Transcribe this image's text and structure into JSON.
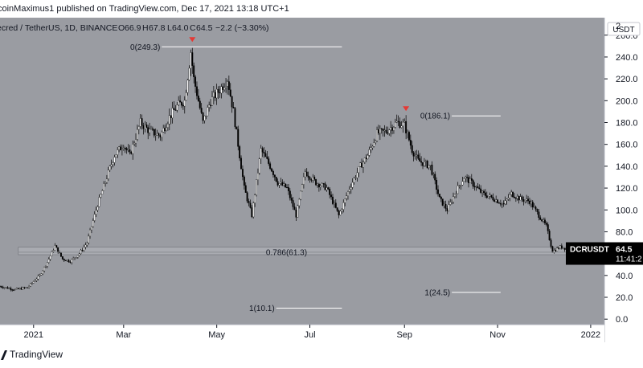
{
  "header": {
    "text": "coinMaximus1 published on TradingView.com, Dec 17, 2021 13:18 UTC+1"
  },
  "footer": {
    "brand": "TradingView",
    "logo_icon": "tradingview-logo-icon"
  },
  "colors": {
    "plot_background": "#9a9ca2",
    "candle_up": "#ffffff",
    "candle_down": "#000000",
    "fib_line": "#ffffff",
    "marker": "#e53935",
    "zone": "#a9abb1",
    "price_tag": "#000000"
  },
  "chart_data": {
    "type": "candlestick",
    "symbol_line": {
      "symbol": "ecred / TetherUS, 1D, BINANCE",
      "open_label": "O",
      "open": "66.9",
      "high_label": "H",
      "high": "67.8",
      "low_label": "L",
      "low": "64.0",
      "close_label": "C",
      "close": "64.5",
      "change": "−2.2 (−3.30%)"
    },
    "x_axis": {
      "ticks": [
        "2021",
        "Mar",
        "May",
        "Jul",
        "Sep",
        "Nov",
        "2022"
      ],
      "start": "2020-12-10",
      "end": "2022-01-10"
    },
    "y_axis": {
      "min": -5,
      "max": 276,
      "currency": "USDT",
      "top_partial_label": "2",
      "ticks": [
        0,
        20,
        40,
        60,
        80,
        100,
        120,
        140,
        160,
        180,
        200,
        220,
        240,
        260
      ],
      "tick_labels": [
        "0.0",
        "20.0",
        "40.0",
        "60.0",
        "80.0",
        "100.0",
        "120.0",
        "140.0",
        "160.0",
        "180.0",
        "200.0",
        "220.0",
        "240.0",
        "260.0"
      ]
    },
    "price_path": [
      [
        "2020-12-10",
        30
      ],
      [
        "2020-12-20",
        27
      ],
      [
        "2020-12-28",
        29
      ],
      [
        "2021-01-05",
        40
      ],
      [
        "2021-01-10",
        52
      ],
      [
        "2021-01-15",
        67
      ],
      [
        "2021-01-20",
        55
      ],
      [
        "2021-01-25",
        53
      ],
      [
        "2021-01-31",
        60
      ],
      [
        "2021-02-05",
        70
      ],
      [
        "2021-02-12",
        105
      ],
      [
        "2021-02-18",
        130
      ],
      [
        "2021-02-23",
        150
      ],
      [
        "2021-03-01",
        160
      ],
      [
        "2021-03-05",
        150
      ],
      [
        "2021-03-12",
        180
      ],
      [
        "2021-03-18",
        172
      ],
      [
        "2021-03-25",
        168
      ],
      [
        "2021-03-31",
        185
      ],
      [
        "2021-04-05",
        195
      ],
      [
        "2021-04-10",
        200
      ],
      [
        "2021-04-14",
        245
      ],
      [
        "2021-04-16",
        220
      ],
      [
        "2021-04-22",
        180
      ],
      [
        "2021-04-27",
        200
      ],
      [
        "2021-05-03",
        210
      ],
      [
        "2021-05-08",
        220
      ],
      [
        "2021-05-12",
        190
      ],
      [
        "2021-05-19",
        120
      ],
      [
        "2021-05-24",
        95
      ],
      [
        "2021-05-30",
        155
      ],
      [
        "2021-06-05",
        140
      ],
      [
        "2021-06-10",
        125
      ],
      [
        "2021-06-16",
        120
      ],
      [
        "2021-06-22",
        95
      ],
      [
        "2021-06-28",
        135
      ],
      [
        "2021-07-05",
        125
      ],
      [
        "2021-07-12",
        120
      ],
      [
        "2021-07-20",
        95
      ],
      [
        "2021-07-27",
        120
      ],
      [
        "2021-08-03",
        140
      ],
      [
        "2021-08-08",
        150
      ],
      [
        "2021-08-14",
        170
      ],
      [
        "2021-08-20",
        172
      ],
      [
        "2021-08-27",
        180
      ],
      [
        "2021-09-01",
        178
      ],
      [
        "2021-09-06",
        155
      ],
      [
        "2021-09-10",
        145
      ],
      [
        "2021-09-18",
        140
      ],
      [
        "2021-09-24",
        110
      ],
      [
        "2021-09-29",
        100
      ],
      [
        "2021-10-04",
        115
      ],
      [
        "2021-10-10",
        130
      ],
      [
        "2021-10-15",
        125
      ],
      [
        "2021-10-22",
        115
      ],
      [
        "2021-10-30",
        110
      ],
      [
        "2021-11-05",
        105
      ],
      [
        "2021-11-10",
        115
      ],
      [
        "2021-11-16",
        110
      ],
      [
        "2021-11-22",
        108
      ],
      [
        "2021-11-28",
        95
      ],
      [
        "2021-12-03",
        85
      ],
      [
        "2021-12-07",
        62
      ],
      [
        "2021-12-12",
        66
      ],
      [
        "2021-12-17",
        64.5
      ]
    ],
    "peak_markers": [
      {
        "date": "2021-04-15",
        "value": 249.3
      },
      {
        "date": "2021-09-02",
        "value": 186.1
      }
    ],
    "fib_levels": [
      {
        "label": "0(249.3)",
        "value": 249.3,
        "from": "2021-03-26",
        "to": "2021-07-22"
      },
      {
        "label": "0(186.1)",
        "value": 186.1,
        "from": "2021-10-02",
        "to": "2021-11-03"
      },
      {
        "label": "0.786(61.3)",
        "value": 61.3,
        "from": "2020-12-22",
        "to": "2021-12-19"
      },
      {
        "label": "1(24.5)",
        "value": 24.5,
        "from": "2021-10-02",
        "to": "2021-11-03"
      },
      {
        "label": "1(10.1)",
        "value": 10.1,
        "from": "2021-06-09",
        "to": "2021-07-22"
      }
    ],
    "support_zone": {
      "low": 59,
      "high": 66,
      "from": "2020-12-22",
      "to": "2021-12-19"
    },
    "price_label": {
      "symbol": "DCRUSDT",
      "price": "64.5",
      "countdown": "11:41:2",
      "value": 64.5
    }
  }
}
